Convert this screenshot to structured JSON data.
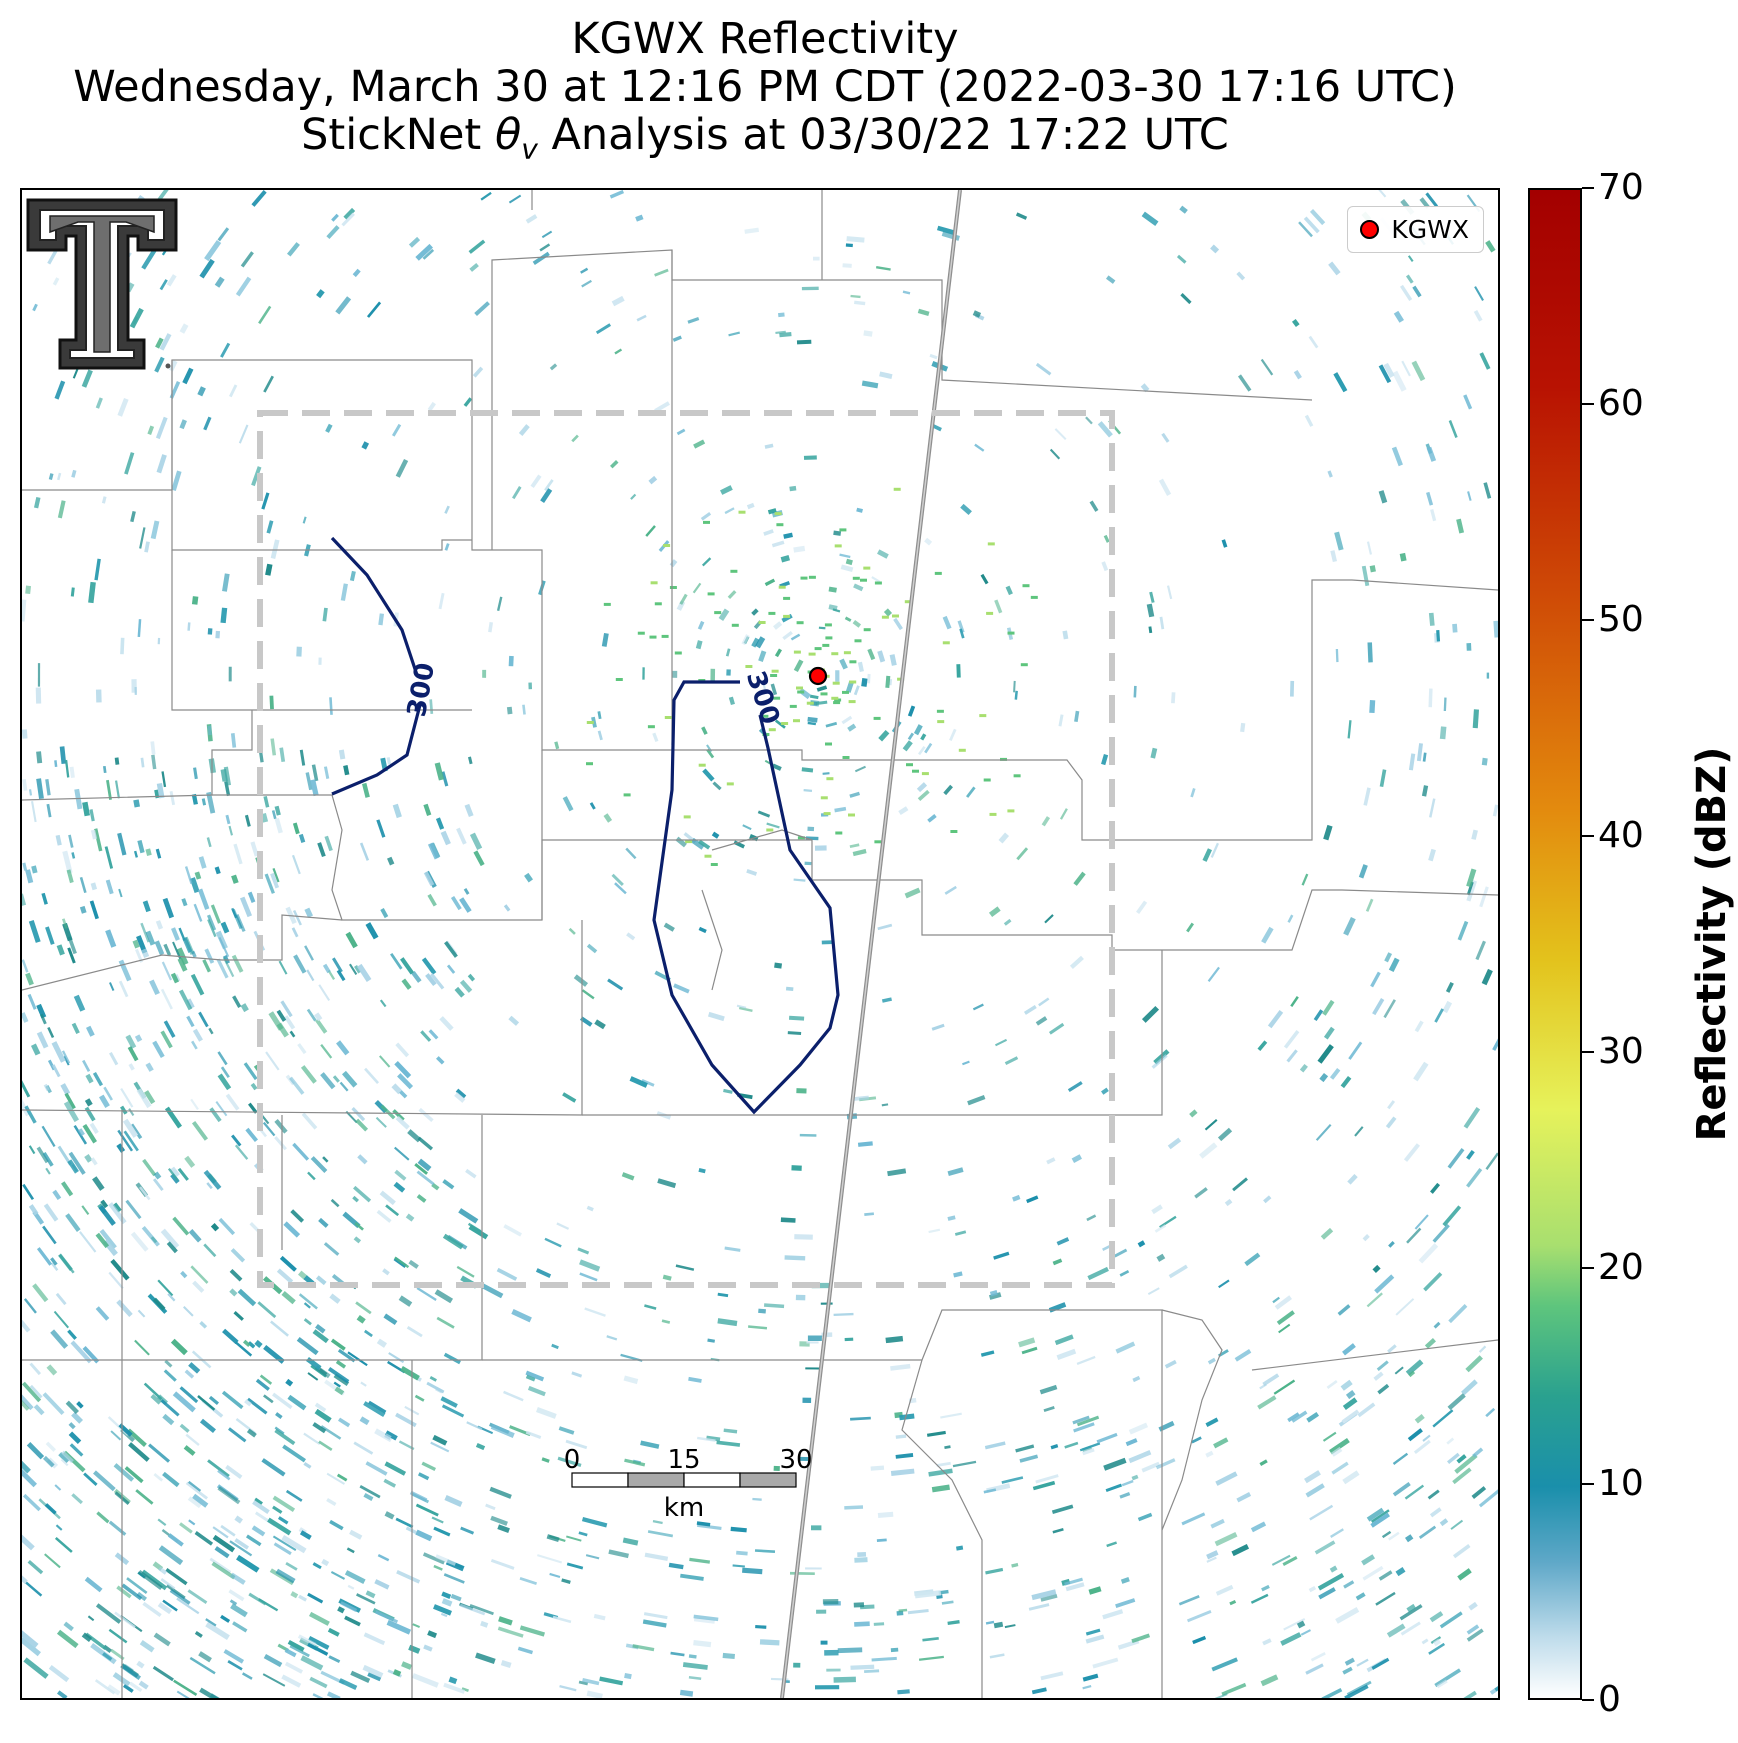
{
  "header": {
    "title_line1": "KGWX Reflectivity",
    "title_line2": "Wednesday, March 30 at 12:16 PM CDT (2022-03-30 17:16 UTC)",
    "title_line3_prefix": "StickNet ",
    "title_line3_theta": "θ",
    "title_line3_sub": "v",
    "title_line3_suffix": " Analysis at 03/30/22 17:22 UTC"
  },
  "legend": {
    "label": "KGWX",
    "marker_color": "#ff0000"
  },
  "contours": {
    "label": "300",
    "color": "#0b1f6b"
  },
  "scale_bar": {
    "ticks": [
      "0",
      "15",
      "30"
    ],
    "unit": "km"
  },
  "colorbar": {
    "title": "Reflectivity (dBZ)",
    "ticks": [
      "0",
      "10",
      "20",
      "30",
      "40",
      "50",
      "60",
      "70"
    ],
    "range": [
      0,
      70
    ]
  },
  "logo": {
    "name": "texas-tech-double-t"
  }
}
